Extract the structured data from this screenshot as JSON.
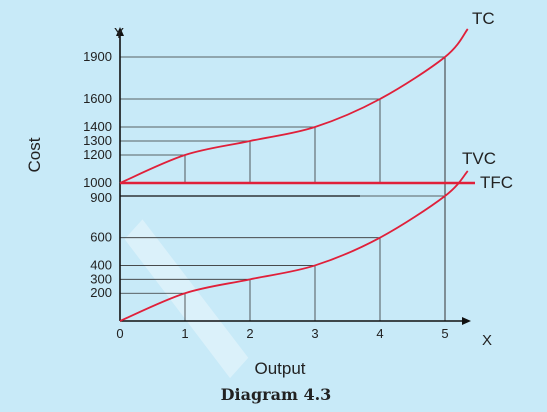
{
  "chart_data": {
    "type": "line",
    "x": [
      0,
      1,
      2,
      3,
      4,
      5
    ],
    "series": [
      {
        "name": "TC",
        "values": [
          1000,
          1200,
          1300,
          1400,
          1600,
          1900
        ]
      },
      {
        "name": "TVC",
        "values": [
          0,
          200,
          300,
          400,
          600,
          900
        ]
      },
      {
        "name": "TFC",
        "values": [
          1000,
          1000,
          1000,
          1000,
          1000,
          1000
        ]
      }
    ],
    "y_ticks_upper": [
      1900,
      1600,
      1400,
      1300,
      1200,
      1000
    ],
    "y_ticks_lower": [
      900,
      600,
      400,
      300,
      200
    ],
    "x_ticks": [
      "0",
      "1",
      "2",
      "3",
      "4",
      "5"
    ],
    "y_axis_letter": "Y",
    "x_axis_letter": "X",
    "ylabel": "Cost",
    "xlabel": "Output",
    "caption": "Diagram 4.3",
    "colors": {
      "curve": "#e0203a",
      "guide": "#333333",
      "axis": "#111111",
      "background": "#c8eaf8"
    }
  }
}
